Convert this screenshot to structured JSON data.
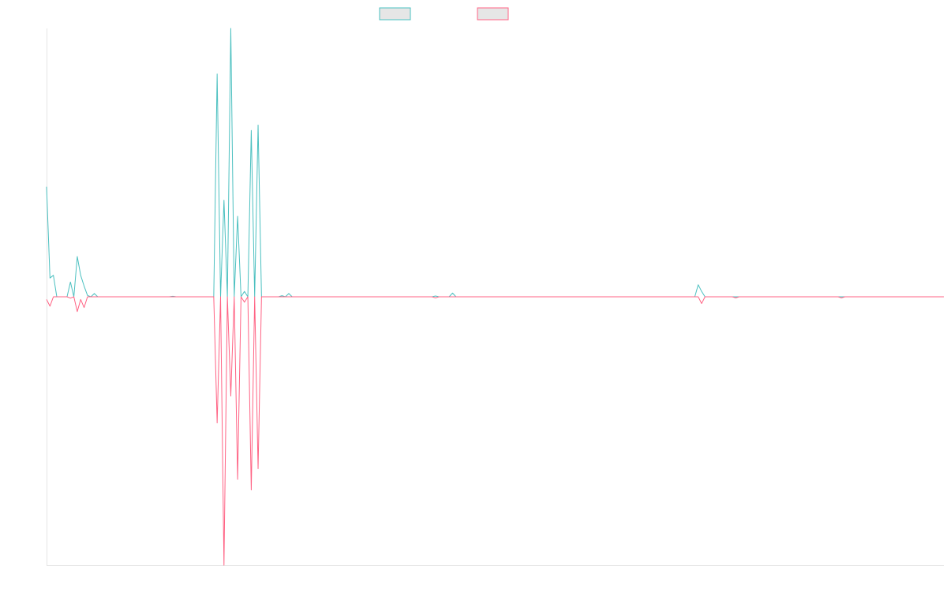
{
  "chart_data": {
    "type": "line",
    "title": "",
    "xlabel": "",
    "ylabel": "",
    "grid": false,
    "legend_placement": "top-center",
    "x_count": 264,
    "ylim": [
      -1,
      1
    ],
    "series": [
      {
        "name": "",
        "color": "#4bc0c0",
        "fill": "#e6e6e6",
        "sparse_values": [
          [
            0,
            0.41
          ],
          [
            1,
            0.07
          ],
          [
            2,
            0.08
          ],
          [
            3,
            0
          ],
          [
            7,
            0.055
          ],
          [
            8,
            0
          ],
          [
            9,
            0.15
          ],
          [
            10,
            0.08
          ],
          [
            11,
            0.04
          ],
          [
            12,
            0.005
          ],
          [
            14,
            0.012
          ],
          [
            15,
            0
          ],
          [
            37,
            0.002
          ],
          [
            38,
            0
          ],
          [
            50,
            0.83
          ],
          [
            51,
            0
          ],
          [
            52,
            0.36
          ],
          [
            53,
            0
          ],
          [
            54,
            1.0
          ],
          [
            55,
            0
          ],
          [
            56,
            0.3
          ],
          [
            57,
            0
          ],
          [
            58,
            0.02
          ],
          [
            59,
            0
          ],
          [
            60,
            0.62
          ],
          [
            61,
            0
          ],
          [
            62,
            0.64
          ],
          [
            63,
            0
          ],
          [
            69,
            0.004
          ],
          [
            70,
            0
          ],
          [
            71,
            0.012
          ],
          [
            72,
            0
          ],
          [
            114,
            0.003
          ],
          [
            115,
            0
          ],
          [
            119,
            0.014
          ],
          [
            120,
            0
          ],
          [
            191,
            0.045
          ],
          [
            192,
            0.02
          ],
          [
            193,
            0
          ]
        ]
      },
      {
        "name": "",
        "color": "#ff6384",
        "fill": "#e6e6e6",
        "sparse_values": [
          [
            0,
            -0.01
          ],
          [
            1,
            -0.035
          ],
          [
            2,
            0
          ],
          [
            7,
            -0.005
          ],
          [
            8,
            0
          ],
          [
            9,
            -0.055
          ],
          [
            10,
            -0.01
          ],
          [
            11,
            -0.04
          ],
          [
            12,
            0
          ],
          [
            50,
            -0.47
          ],
          [
            51,
            0
          ],
          [
            52,
            -1.0
          ],
          [
            53,
            0
          ],
          [
            54,
            -0.37
          ],
          [
            55,
            0
          ],
          [
            56,
            -0.68
          ],
          [
            57,
            0
          ],
          [
            58,
            -0.02
          ],
          [
            59,
            0
          ],
          [
            60,
            -0.72
          ],
          [
            61,
            0
          ],
          [
            62,
            -0.64
          ],
          [
            63,
            0
          ],
          [
            114,
            -0.004
          ],
          [
            115,
            0
          ],
          [
            192,
            -0.025
          ],
          [
            193,
            0
          ],
          [
            202,
            -0.004
          ],
          [
            203,
            0
          ],
          [
            233,
            -0.004
          ],
          [
            234,
            0
          ]
        ]
      }
    ]
  }
}
